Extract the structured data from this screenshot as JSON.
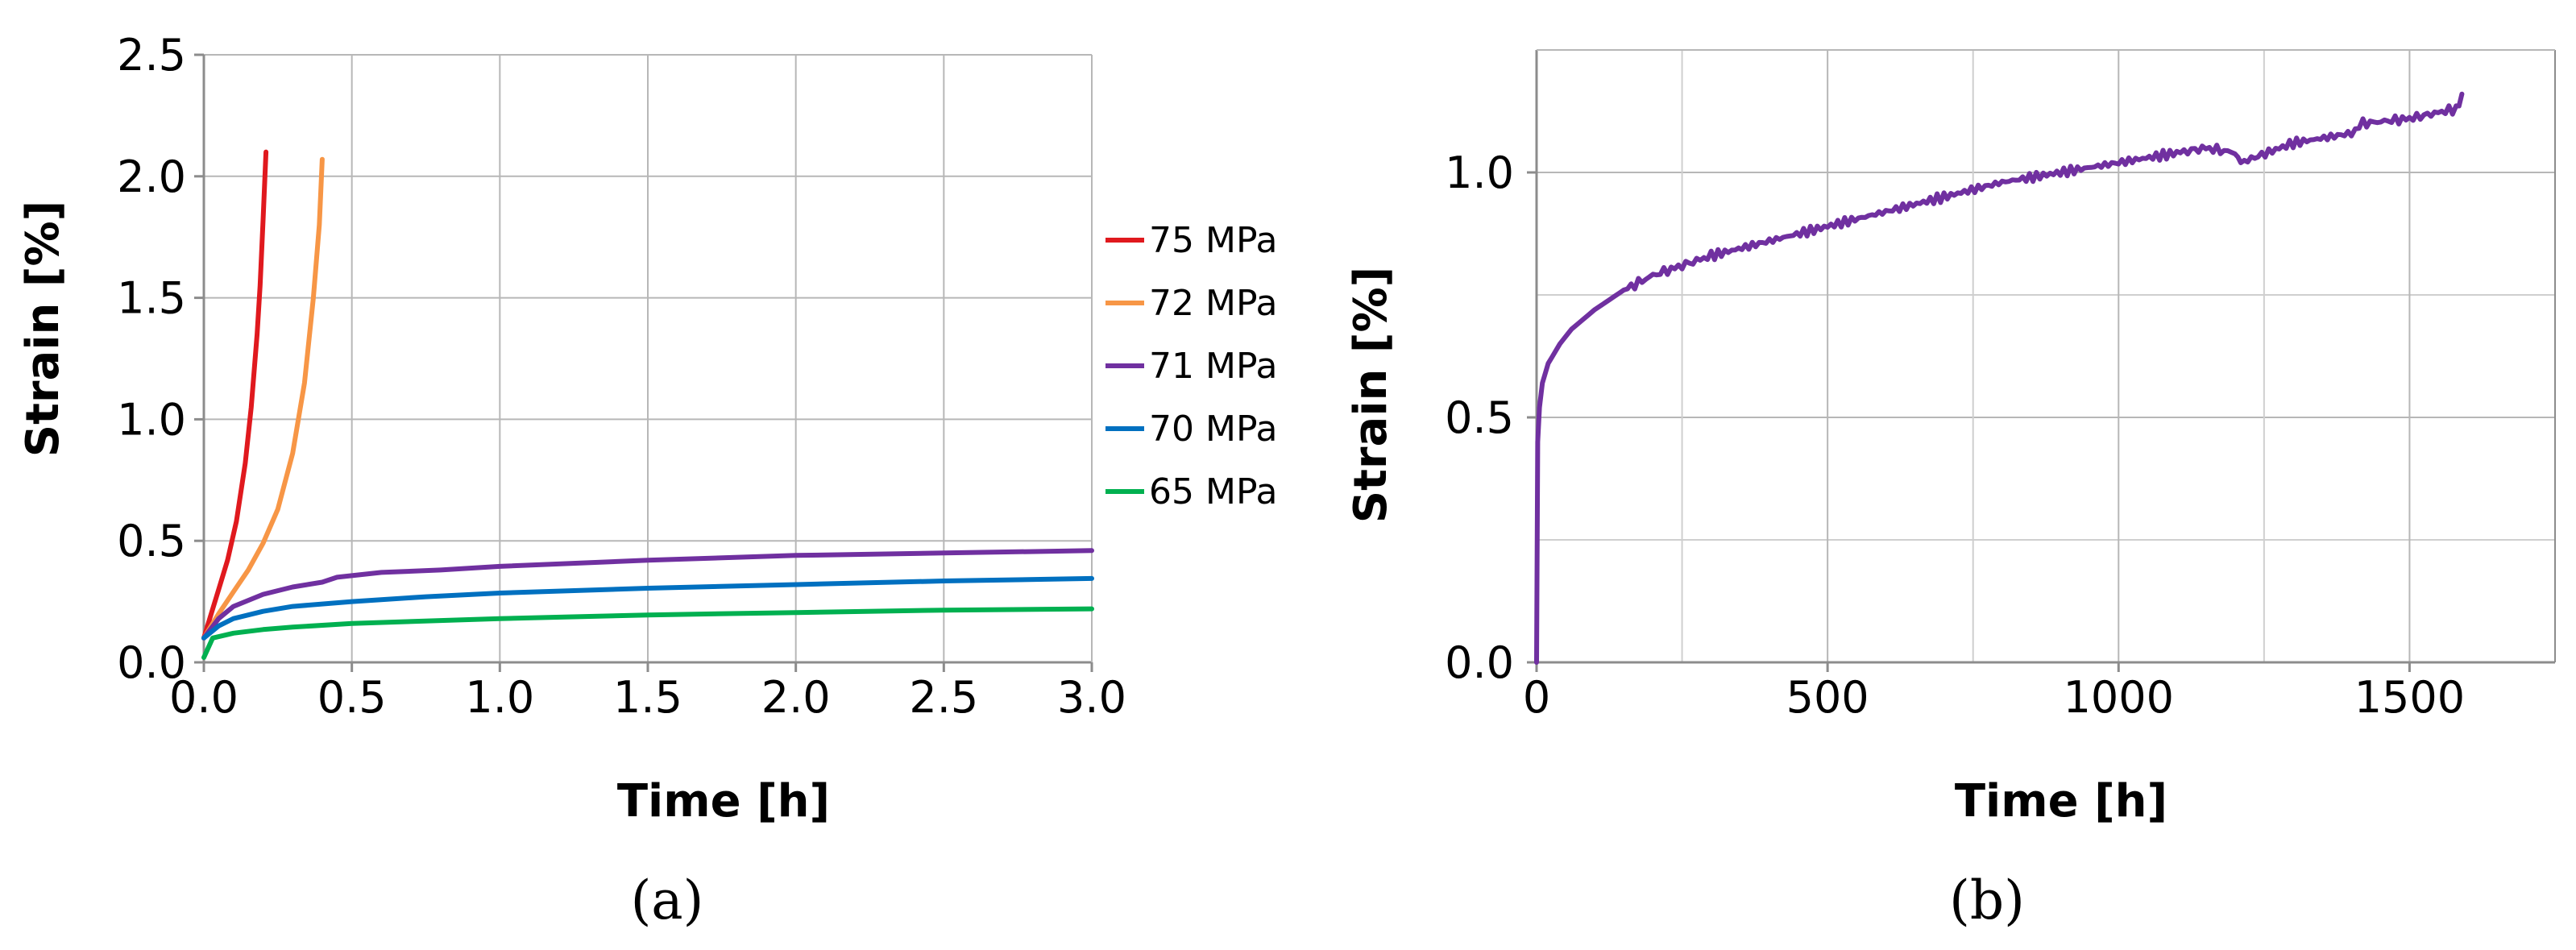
{
  "chart_data": [
    {
      "panel_label": "(a)",
      "type": "line",
      "xlabel": "Time [h]",
      "ylabel": "Strain [%]",
      "xlim": [
        0,
        3
      ],
      "ylim": [
        0,
        2.5
      ],
      "x_ticks": [
        0,
        0.5,
        1,
        1.5,
        2,
        2.5,
        3
      ],
      "x_tick_labels": [
        "0.0",
        "0.5",
        "1.0",
        "1.5",
        "2.0",
        "2.5",
        "3.0"
      ],
      "y_ticks": [
        0,
        0.5,
        1,
        1.5,
        2,
        2.5
      ],
      "y_tick_labels": [
        "0.0",
        "0.5",
        "1.0",
        "1.5",
        "2.0",
        "2.5"
      ],
      "grid": true,
      "legend_position": "right",
      "series": [
        {
          "name": "75 MPa",
          "color": "#e0191e",
          "x": [
            0,
            0.02,
            0.05,
            0.08,
            0.11,
            0.14,
            0.16,
            0.18,
            0.19,
            0.2,
            0.21
          ],
          "y": [
            0.1,
            0.18,
            0.3,
            0.42,
            0.58,
            0.82,
            1.05,
            1.35,
            1.55,
            1.82,
            2.1
          ]
        },
        {
          "name": "72 MPa",
          "color": "#f79646",
          "x": [
            0,
            0.05,
            0.1,
            0.15,
            0.2,
            0.25,
            0.3,
            0.34,
            0.37,
            0.39,
            0.4
          ],
          "y": [
            0.1,
            0.2,
            0.29,
            0.38,
            0.49,
            0.63,
            0.86,
            1.15,
            1.5,
            1.8,
            2.07
          ]
        },
        {
          "name": "71 MPa",
          "color": "#7030a0",
          "x": [
            0,
            0.05,
            0.1,
            0.2,
            0.3,
            0.4,
            0.45,
            0.6,
            0.8,
            1.0,
            1.5,
            2.0,
            2.5,
            3.0
          ],
          "y": [
            0.1,
            0.18,
            0.23,
            0.28,
            0.31,
            0.33,
            0.35,
            0.37,
            0.38,
            0.395,
            0.42,
            0.44,
            0.45,
            0.46
          ]
        },
        {
          "name": "70 MPa",
          "color": "#0070c0",
          "x": [
            0,
            0.05,
            0.1,
            0.2,
            0.3,
            0.5,
            0.75,
            1.0,
            1.5,
            2.0,
            2.5,
            3.0
          ],
          "y": [
            0.1,
            0.15,
            0.18,
            0.21,
            0.23,
            0.25,
            0.27,
            0.285,
            0.305,
            0.32,
            0.335,
            0.345
          ]
        },
        {
          "name": "65 MPa",
          "color": "#00b050",
          "x": [
            0,
            0.03,
            0.1,
            0.2,
            0.3,
            0.5,
            1.0,
            1.5,
            2.0,
            2.5,
            3.0
          ],
          "y": [
            0.02,
            0.1,
            0.12,
            0.135,
            0.145,
            0.16,
            0.18,
            0.195,
            0.205,
            0.215,
            0.22
          ]
        }
      ]
    },
    {
      "panel_label": "(b)",
      "type": "line",
      "xlabel": "Time [h]",
      "ylabel": "Strain [%]",
      "xlim": [
        0,
        1750
      ],
      "ylim": [
        0,
        1.25
      ],
      "x_ticks": [
        0,
        500,
        1000,
        1500
      ],
      "x_tick_labels": [
        "0",
        "500",
        "1000",
        "1500"
      ],
      "y_ticks": [
        0,
        0.5,
        1
      ],
      "y_tick_labels": [
        "0.0",
        "0.5",
        "1.0"
      ],
      "grid": true,
      "series": [
        {
          "color": "#7030a0",
          "x": [
            0,
            2,
            5,
            10,
            20,
            40,
            60,
            100,
            150,
            200,
            250,
            300,
            400,
            500,
            600,
            700,
            800,
            900,
            1000,
            1100,
            1150,
            1200,
            1210,
            1300,
            1400,
            1420,
            1500,
            1580,
            1590
          ],
          "y": [
            0,
            0.45,
            0.52,
            0.57,
            0.61,
            0.65,
            0.68,
            0.72,
            0.76,
            0.79,
            0.81,
            0.83,
            0.86,
            0.89,
            0.92,
            0.95,
            0.98,
            1.0,
            1.02,
            1.04,
            1.05,
            1.04,
            1.02,
            1.06,
            1.08,
            1.1,
            1.11,
            1.13,
            1.16
          ]
        }
      ]
    }
  ]
}
